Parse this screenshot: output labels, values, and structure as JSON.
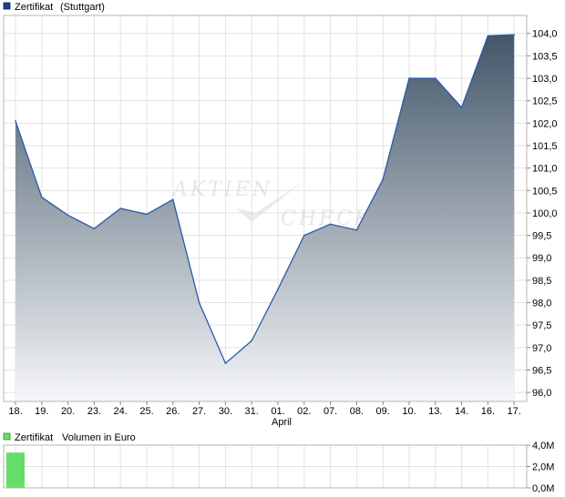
{
  "chart_data": [
    {
      "type": "area",
      "legend": {
        "label": "Zertifikat",
        "exchange": "(Stuttgart)",
        "color": "#1f3f8a"
      },
      "categories": [
        "18.",
        "19.",
        "20.",
        "23.",
        "24.",
        "25.",
        "26.",
        "27.",
        "30.",
        "31.",
        "01.",
        "02.",
        "07.",
        "08.",
        "09.",
        "10.",
        "13.",
        "14.",
        "16.",
        "17."
      ],
      "month_label": "April",
      "month_label_category": "01.",
      "values": [
        102.05,
        100.35,
        99.95,
        99.65,
        100.1,
        99.97,
        100.3,
        98.0,
        96.65,
        97.15,
        98.3,
        99.5,
        99.75,
        99.62,
        100.75,
        103.0,
        103.0,
        102.35,
        103.95,
        103.97
      ],
      "last_value": 103.97,
      "ylim": [
        95.8,
        104.4
      ],
      "yticks": [
        "104,0",
        "103,5",
        "103,0",
        "102,5",
        "102,0",
        "101,5",
        "101,0",
        "100,5",
        "100,0",
        "99,5",
        "99,0",
        "98,5",
        "98,0",
        "97,5",
        "97,0",
        "96,5",
        "96,0"
      ],
      "ytick_values": [
        104.0,
        103.5,
        103.0,
        102.5,
        102.0,
        101.5,
        101.0,
        100.5,
        100.0,
        99.5,
        99.0,
        98.5,
        98.0,
        97.5,
        97.0,
        96.5,
        96.0
      ],
      "grid": true,
      "line_color": "#2a5aa8",
      "gradient_top": "#435669",
      "gradient_bottom": "#f6f7f9",
      "watermark": [
        "AKTIEN",
        "CHECK"
      ]
    },
    {
      "type": "bar",
      "legend": {
        "label": "Zertifikat",
        "unit_label": "Volumen in Euro",
        "color": "#66dd66"
      },
      "categories": [
        "18.",
        "19.",
        "20.",
        "23.",
        "24.",
        "25.",
        "26.",
        "27.",
        "30.",
        "31.",
        "01.",
        "02.",
        "07.",
        "08.",
        "09.",
        "10.",
        "13.",
        "14.",
        "16.",
        "17."
      ],
      "values": [
        3.3,
        0,
        0,
        0,
        0,
        0,
        0,
        0,
        0,
        0,
        0,
        0,
        0,
        0,
        0,
        0,
        0,
        0,
        0,
        0
      ],
      "unit": "M",
      "ylim": [
        0,
        4
      ],
      "yticks": [
        "4,0M",
        "2,0M",
        "0,0M"
      ],
      "ytick_values": [
        4,
        2,
        0
      ],
      "grid": true,
      "bar_color": "#66dd66"
    }
  ]
}
